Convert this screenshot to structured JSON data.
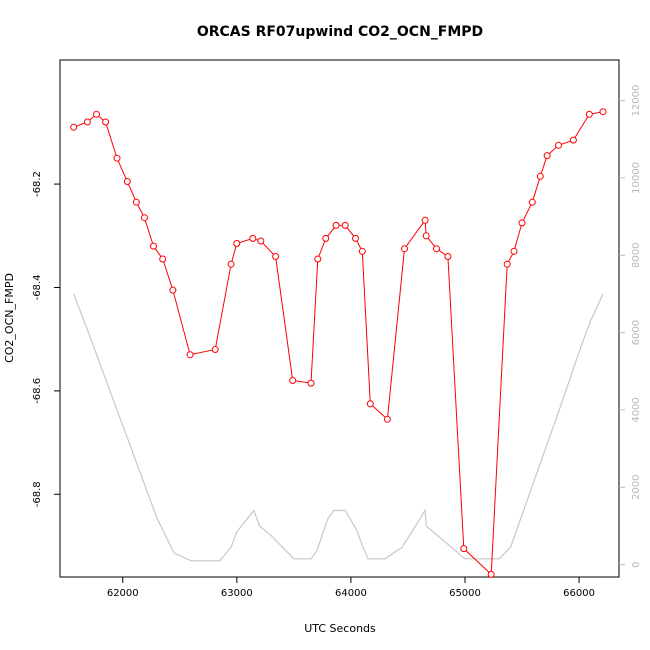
{
  "chart_data": {
    "type": "line",
    "title": "ORCAS RF07upwind CO2_OCN_FMPD",
    "xlabel": "UTC Seconds",
    "ylabel": "CO2_OCN_FMPD",
    "xlim": [
      61450,
      66350
    ],
    "ylim": [
      -68.96,
      -67.96
    ],
    "y2lim": [
      -320,
      13050
    ],
    "x_ticks": [
      62000,
      63000,
      64000,
      65000,
      66000
    ],
    "y_ticks": [
      -68.2,
      -68.4,
      -68.6,
      -68.8
    ],
    "y2_ticks": [
      0,
      2000,
      4000,
      6000,
      8000,
      10000,
      12000
    ],
    "colors": {
      "primary": "#ff0000",
      "secondary": "#c8c8c8",
      "axis": "#000000",
      "right_axis": "#b8b8b8"
    },
    "series": [
      {
        "axis": "left",
        "marker": "open-circle",
        "x": [
          61570,
          61690,
          61770,
          61850,
          61950,
          62040,
          62120,
          62190,
          62270,
          62350,
          62440,
          62590,
          62810,
          62950,
          63000,
          63140,
          63210,
          63340,
          63490,
          63650,
          63710,
          63780,
          63870,
          63950,
          64040,
          64100,
          64170,
          64320,
          64470,
          64650,
          64660,
          64750,
          64850,
          64990,
          65230,
          65370,
          65430,
          65500,
          65590,
          65660,
          65720,
          65820,
          65950,
          66090,
          66210
        ],
        "y": [
          -68.09,
          -68.08,
          -68.065,
          -68.08,
          -68.15,
          -68.195,
          -68.235,
          -68.265,
          -68.32,
          -68.345,
          -68.405,
          -68.53,
          -68.52,
          -68.355,
          -68.315,
          -68.305,
          -68.31,
          -68.34,
          -68.58,
          -68.585,
          -68.345,
          -68.305,
          -68.28,
          -68.28,
          -68.305,
          -68.33,
          -68.625,
          -68.655,
          -68.325,
          -68.27,
          -68.3,
          -68.325,
          -68.34,
          -68.905,
          -68.955,
          -68.355,
          -68.33,
          -68.275,
          -68.235,
          -68.185,
          -68.145,
          -68.125,
          -68.115,
          -68.065,
          -68.06
        ]
      },
      {
        "axis": "right",
        "marker": "none",
        "x": [
          61570,
          61700,
          61850,
          62000,
          62150,
          62300,
          62450,
          62600,
          62750,
          62850,
          62950,
          63000,
          63150,
          63200,
          63300,
          63400,
          63500,
          63600,
          63650,
          63700,
          63800,
          63850,
          63950,
          64050,
          64100,
          64150,
          64300,
          64450,
          64650,
          64660,
          64800,
          65000,
          65100,
          65200,
          65300,
          65400,
          65550,
          65700,
          65850,
          66000,
          66100,
          66210
        ],
        "y": [
          7000,
          6000,
          4800,
          3600,
          2400,
          1200,
          300,
          100,
          100,
          100,
          450,
          850,
          1400,
          1000,
          750,
          450,
          150,
          150,
          150,
          350,
          1200,
          1400,
          1400,
          900,
          500,
          150,
          150,
          450,
          1400,
          1000,
          650,
          150,
          150,
          150,
          150,
          450,
          1700,
          2950,
          4200,
          5500,
          6300,
          7000
        ]
      }
    ]
  }
}
